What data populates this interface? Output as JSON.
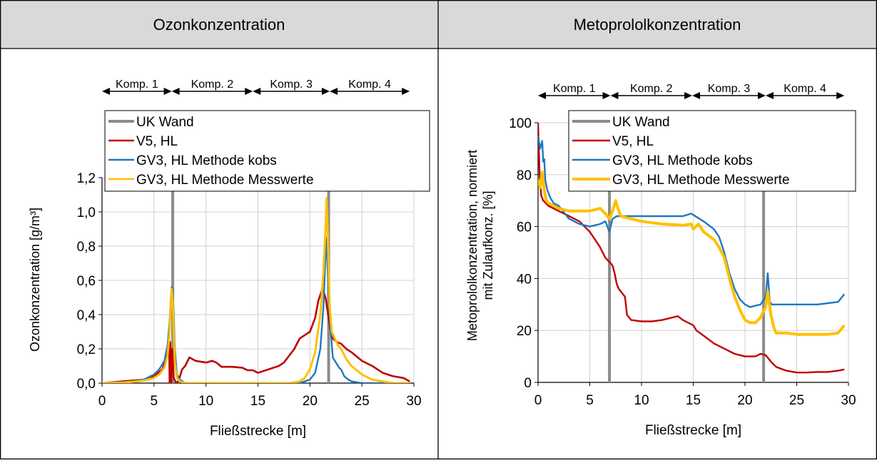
{
  "panels": {
    "left_header": "Ozonkonzentration",
    "right_header": "Metoprololkonzentration"
  },
  "legend": [
    {
      "label": "UK Wand",
      "color": "#8c8c8c"
    },
    {
      "label": "V5, HL",
      "color": "#c00000"
    },
    {
      "label": "GV3, HL Methode kobs",
      "color": "#1f78c1"
    },
    {
      "label": "GV3, HL Methode Messwerte",
      "color": "#ffc000"
    }
  ],
  "compartments": [
    "Komp. 1",
    "Komp. 2",
    "Komp. 3",
    "Komp. 4"
  ],
  "chart_data": [
    {
      "type": "line",
      "title": "Ozonkonzentration",
      "xlabel": "Fließstrecke [m]",
      "ylabel": "Ozonkonzentration [g/m³]",
      "xlim": [
        0,
        30
      ],
      "ylim": [
        0,
        1.2
      ],
      "xticks": [
        0,
        5,
        10,
        15,
        20,
        25,
        30
      ],
      "xtick_labels": [
        "0",
        "5",
        "10",
        "15",
        "20",
        "25",
        "30"
      ],
      "yticks": [
        0,
        0.2,
        0.4,
        0.6,
        0.8,
        1.0,
        1.2
      ],
      "ytick_labels": [
        "0,0",
        "0,2",
        "0,4",
        "0,6",
        "0,8",
        "1,0",
        "1,2"
      ],
      "grid": true,
      "legend_position": "top",
      "compartment_boundaries": [
        0,
        6.7,
        14.5,
        21.9,
        29.6
      ],
      "walls": [
        6.8,
        21.8
      ],
      "series": [
        {
          "name": "V5, HL",
          "x": [
            0,
            2,
            4,
            5,
            5.8,
            6.2,
            6.35,
            6.45,
            6.5,
            6.55,
            6.65,
            6.75,
            6.9,
            7.05,
            7.2,
            7.4,
            7.7,
            8.0,
            8.4,
            9,
            10,
            10.6,
            11,
            11.5,
            12.5,
            13.5,
            14,
            14.5,
            15,
            16,
            17,
            17.5,
            18,
            18.5,
            19,
            19.5,
            20,
            20.5,
            20.8,
            21.2,
            21.5,
            21.7,
            22,
            22.2,
            22.6,
            23,
            23.5,
            24,
            25,
            26,
            27,
            28,
            29,
            29.6
          ],
          "y": [
            0,
            0.01,
            0.02,
            0.04,
            0.08,
            0.15,
            0.22,
            0.25,
            0.0,
            0.24,
            0.0,
            0.2,
            0.03,
            0.01,
            0.0,
            0.02,
            0.08,
            0.1,
            0.15,
            0.13,
            0.12,
            0.13,
            0.12,
            0.095,
            0.095,
            0.09,
            0.075,
            0.075,
            0.06,
            0.08,
            0.1,
            0.12,
            0.16,
            0.2,
            0.26,
            0.28,
            0.3,
            0.38,
            0.48,
            0.55,
            0.5,
            0.42,
            0.3,
            0.26,
            0.24,
            0.23,
            0.2,
            0.18,
            0.13,
            0.1,
            0.06,
            0.04,
            0.03,
            0.01
          ]
        },
        {
          "name": "GV3, HL Methode kobs",
          "x": [
            0,
            2,
            3,
            4,
            5,
            5.5,
            6,
            6.3,
            6.5,
            6.6,
            6.7,
            6.8,
            6.9,
            7.0,
            7.2,
            7.5,
            8,
            10,
            15,
            18,
            19,
            20,
            20.5,
            21,
            21.3,
            21.5,
            21.6,
            21.8,
            22.0,
            22.2,
            22.5,
            22.8,
            23,
            23.3,
            23.7,
            24,
            25,
            29.6
          ],
          "y": [
            0,
            0.005,
            0.01,
            0.02,
            0.05,
            0.08,
            0.13,
            0.22,
            0.36,
            0.48,
            0.56,
            0.55,
            0.4,
            0.2,
            0.05,
            0.02,
            0,
            0,
            0,
            0,
            0,
            0.02,
            0.06,
            0.2,
            0.45,
            0.75,
            0.85,
            0.5,
            0.3,
            0.15,
            0.12,
            0.09,
            0.08,
            0.04,
            0.02,
            0.01,
            0,
            0
          ]
        },
        {
          "name": "GV3, HL Methode Messwerte",
          "x": [
            0,
            2,
            3,
            4,
            5,
            5.5,
            6,
            6.3,
            6.5,
            6.6,
            6.7,
            6.8,
            6.9,
            7.0,
            7.2,
            7.5,
            8,
            10,
            15,
            18,
            19,
            19.5,
            20,
            20.5,
            21,
            21.3,
            21.5,
            21.6,
            21.7,
            21.9,
            22.1,
            22.4,
            22.7,
            23,
            23.5,
            24,
            25,
            26,
            27,
            28,
            29,
            29.6
          ],
          "y": [
            0,
            0.003,
            0.008,
            0.015,
            0.03,
            0.05,
            0.09,
            0.16,
            0.3,
            0.45,
            0.55,
            0.48,
            0.3,
            0.12,
            0.03,
            0.01,
            0,
            0,
            0,
            0,
            0.01,
            0.03,
            0.08,
            0.18,
            0.4,
            0.65,
            0.9,
            1.08,
            0.9,
            0.45,
            0.3,
            0.26,
            0.22,
            0.2,
            0.14,
            0.1,
            0.05,
            0.02,
            0.01,
            0,
            0,
            0
          ]
        }
      ]
    },
    {
      "type": "line",
      "title": "Metoprololkonzentration",
      "xlabel": "Fließstrecke [m]",
      "ylabel_lines": [
        "Metoprololkonzentration,  normiert",
        "mit Zulaufkonz. [%]"
      ],
      "xlim": [
        0,
        30
      ],
      "ylim": [
        0,
        100
      ],
      "xticks": [
        0,
        5,
        10,
        15,
        20,
        25,
        30
      ],
      "xtick_labels": [
        "0",
        "5",
        "10",
        "15",
        "20",
        "25",
        "30"
      ],
      "yticks": [
        0,
        20,
        40,
        60,
        80,
        100
      ],
      "ytick_labels": [
        "0",
        "20",
        "40",
        "60",
        "80",
        "100"
      ],
      "grid": true,
      "legend_position": "top",
      "compartment_boundaries": [
        0,
        7.0,
        14.9,
        22.0,
        29.6
      ],
      "walls": [
        6.9,
        21.8
      ],
      "series": [
        {
          "name": "V5, HL",
          "x": [
            0,
            0.15,
            0.3,
            0.5,
            1,
            2,
            3,
            4,
            5,
            5.5,
            6,
            6.5,
            7,
            7.2,
            7.4,
            7.6,
            7.8,
            8,
            8.2,
            8.4,
            8.6,
            9,
            10,
            11,
            12,
            13,
            13.5,
            14,
            14.5,
            15,
            15.3,
            16,
            17,
            18,
            19,
            19.5,
            20,
            21,
            21.5,
            22,
            22.5,
            23,
            24,
            25,
            26,
            27,
            28,
            29,
            29.6
          ],
          "y": [
            100,
            80,
            72,
            70,
            68,
            66,
            64,
            62,
            58,
            55,
            52,
            48,
            46,
            45,
            42,
            38,
            36,
            35,
            34,
            33,
            26,
            24,
            23.5,
            23.5,
            24,
            25,
            25.5,
            24,
            23,
            22,
            20,
            18,
            15,
            13,
            11,
            10.5,
            10,
            10,
            11,
            10.5,
            8,
            6,
            4.5,
            3.8,
            3.8,
            4,
            4,
            4.5,
            5
          ]
        },
        {
          "name": "GV3, HL Methode kobs",
          "x": [
            0,
            0.2,
            0.4,
            0.5,
            0.6,
            0.7,
            0.9,
            1.2,
            1.5,
            2,
            3,
            4,
            5,
            6,
            6.5,
            6.9,
            7.2,
            7.6,
            8,
            9,
            10,
            12,
            14,
            14.8,
            15,
            16,
            17,
            17.5,
            18,
            18.5,
            19,
            19.5,
            20,
            20.5,
            21,
            21.5,
            22,
            22.2,
            22.4,
            22.6,
            23,
            24,
            25,
            26,
            27,
            28,
            29,
            29.6
          ],
          "y": [
            95,
            90,
            93,
            85,
            86,
            78,
            74,
            71,
            69,
            68,
            63,
            61,
            60,
            61,
            62,
            58,
            63,
            64,
            64,
            64,
            64,
            64,
            64,
            65,
            64.5,
            62,
            59,
            56,
            50,
            42,
            36,
            32,
            30,
            29,
            29.5,
            30,
            33,
            42,
            31,
            30,
            30,
            30,
            30,
            30,
            30,
            30.5,
            31,
            34
          ]
        },
        {
          "name": "GV3, HL Methode Messwerte",
          "x": [
            0,
            0.2,
            0.4,
            0.6,
            0.8,
            1,
            1.5,
            2,
            3,
            4,
            5,
            6,
            6.5,
            6.9,
            7.2,
            7.5,
            7.8,
            8,
            8.5,
            10,
            12,
            14,
            14.8,
            15,
            15.5,
            16,
            17,
            17.5,
            18,
            18.5,
            19,
            19.5,
            20,
            20.5,
            21,
            21.5,
            22,
            22.2,
            22.5,
            22.8,
            23,
            24,
            25,
            26,
            27,
            28,
            29,
            29.6
          ],
          "y": [
            78,
            75,
            81,
            74,
            70,
            69,
            68,
            67,
            66,
            66,
            66,
            67,
            65,
            63,
            66,
            70,
            66,
            64,
            63.5,
            62,
            61,
            60.5,
            61,
            59,
            61,
            58,
            55,
            52,
            48,
            40,
            33,
            28,
            24,
            23,
            23,
            25,
            29,
            35,
            26,
            21,
            19,
            19,
            18.5,
            18.5,
            18.5,
            18.5,
            19,
            22
          ]
        }
      ]
    }
  ]
}
